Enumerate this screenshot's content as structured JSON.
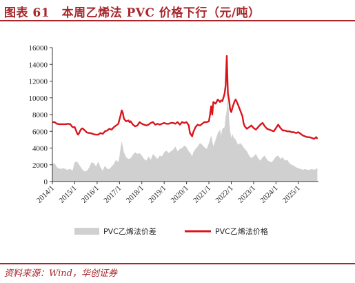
{
  "header": {
    "title": "图表 61　本周乙烯法 PVC 价格下行（元/吨）"
  },
  "footer": {
    "source": "资料来源：Wind，华创证券"
  },
  "chart_data": {
    "type": "line",
    "ylim": [
      0,
      16000
    ],
    "yticks": [
      0,
      2000,
      4000,
      6000,
      8000,
      10000,
      12000,
      14000,
      16000
    ],
    "ytick_labels": [
      "0",
      "2000",
      "4000",
      "6000",
      "8000",
      "10000",
      "12000",
      "14000",
      "16000"
    ],
    "xlim": [
      2014.0,
      2025.9
    ],
    "xticks": [
      2014,
      2015,
      2016,
      2017,
      2018,
      2019,
      2020,
      2021,
      2022,
      2023,
      2024,
      2025
    ],
    "xtick_labels": [
      "2014/1",
      "2015/1",
      "2016/1",
      "2017/1",
      "2018/1",
      "2019/1",
      "2020/1",
      "2021/1",
      "2022/1",
      "2023/1",
      "2024/1",
      "2025/1"
    ],
    "grid": false,
    "legend_position": "bottom",
    "series": [
      {
        "name": "PVC乙烯法价差",
        "kind": "area",
        "color": "#d0d0d0",
        "x": [
          2014.0,
          2014.1,
          2014.2,
          2014.35,
          2014.5,
          2014.65,
          2014.8,
          2014.9,
          2015.0,
          2015.1,
          2015.2,
          2015.35,
          2015.45,
          2015.55,
          2015.65,
          2015.75,
          2015.85,
          2015.95,
          2016.05,
          2016.15,
          2016.25,
          2016.35,
          2016.45,
          2016.55,
          2016.65,
          2016.75,
          2016.85,
          2016.95,
          2017.0,
          2017.05,
          2017.1,
          2017.15,
          2017.2,
          2017.3,
          2017.4,
          2017.5,
          2017.6,
          2017.7,
          2017.8,
          2017.9,
          2018.0,
          2018.1,
          2018.2,
          2018.3,
          2018.4,
          2018.5,
          2018.6,
          2018.7,
          2018.8,
          2018.9,
          2019.0,
          2019.1,
          2019.2,
          2019.3,
          2019.4,
          2019.5,
          2019.6,
          2019.7,
          2019.8,
          2019.9,
          2020.0,
          2020.1,
          2020.2,
          2020.25,
          2020.3,
          2020.4,
          2020.5,
          2020.6,
          2020.7,
          2020.8,
          2020.9,
          2021.0,
          2021.1,
          2021.2,
          2021.3,
          2021.4,
          2021.5,
          2021.55,
          2021.6,
          2021.7,
          2021.75,
          2021.8,
          2021.85,
          2021.9,
          2021.95,
          2022.0,
          2022.05,
          2022.1,
          2022.2,
          2022.3,
          2022.4,
          2022.5,
          2022.6,
          2022.7,
          2022.8,
          2022.9,
          2023.0,
          2023.1,
          2023.2,
          2023.3,
          2023.4,
          2023.5,
          2023.6,
          2023.7,
          2023.8,
          2023.9,
          2024.0,
          2024.1,
          2024.2,
          2024.3,
          2024.4,
          2024.5,
          2024.6,
          2024.7,
          2024.8,
          2024.9,
          2025.0,
          2025.1,
          2025.2,
          2025.3,
          2025.4,
          2025.5,
          2025.6,
          2025.7,
          2025.8,
          2025.85
        ],
        "values": [
          2100,
          2200,
          1700,
          1500,
          1600,
          1400,
          1500,
          1300,
          2300,
          2400,
          2000,
          1400,
          1200,
          1300,
          1700,
          2300,
          2200,
          1800,
          2400,
          1700,
          1300,
          1900,
          1500,
          1500,
          1800,
          2100,
          2600,
          2300,
          3000,
          4000,
          4800,
          4200,
          3500,
          2900,
          2700,
          2800,
          3200,
          3500,
          3300,
          3400,
          3100,
          2700,
          2500,
          3000,
          2600,
          3300,
          3000,
          2700,
          3100,
          3000,
          3500,
          3700,
          3400,
          3600,
          3800,
          4200,
          3600,
          3900,
          4000,
          4300,
          4100,
          3600,
          3300,
          3000,
          3500,
          3900,
          4200,
          4600,
          4400,
          4100,
          3900,
          4600,
          5500,
          4200,
          5000,
          5800,
          6200,
          5500,
          6300,
          6500,
          7800,
          8500,
          10800,
          7500,
          6000,
          5200,
          5700,
          5300,
          5000,
          4400,
          4600,
          4300,
          3900,
          3600,
          3100,
          2800,
          3000,
          3300,
          2800,
          2500,
          2900,
          3100,
          2600,
          2400,
          2300,
          2600,
          3000,
          3100,
          2700,
          2900,
          2500,
          2600,
          2200,
          2000,
          1900,
          1700,
          1600,
          1500,
          1400,
          1500,
          1400,
          1400,
          1500,
          1400,
          1500,
          1600
        ]
      },
      {
        "name": "PVC乙烯法价格",
        "kind": "line",
        "color": "#d9151b",
        "x": [
          2014.0,
          2014.1,
          2014.2,
          2014.3,
          2014.4,
          2014.5,
          2014.6,
          2014.7,
          2014.8,
          2014.9,
          2015.0,
          2015.1,
          2015.15,
          2015.2,
          2015.25,
          2015.3,
          2015.35,
          2015.45,
          2015.55,
          2015.65,
          2015.75,
          2015.85,
          2015.95,
          2016.05,
          2016.15,
          2016.25,
          2016.35,
          2016.45,
          2016.55,
          2016.65,
          2016.75,
          2016.85,
          2016.95,
          2017.0,
          2017.05,
          2017.1,
          2017.15,
          2017.2,
          2017.3,
          2017.4,
          2017.45,
          2017.5,
          2017.6,
          2017.7,
          2017.8,
          2017.9,
          2018.0,
          2018.1,
          2018.2,
          2018.3,
          2018.4,
          2018.5,
          2018.6,
          2018.7,
          2018.8,
          2018.9,
          2019.0,
          2019.1,
          2019.2,
          2019.3,
          2019.4,
          2019.5,
          2019.6,
          2019.7,
          2019.8,
          2019.9,
          2020.0,
          2020.05,
          2020.1,
          2020.15,
          2020.2,
          2020.25,
          2020.3,
          2020.4,
          2020.5,
          2020.6,
          2020.7,
          2020.8,
          2020.9,
          2021.0,
          2021.05,
          2021.1,
          2021.15,
          2021.2,
          2021.3,
          2021.4,
          2021.5,
          2021.55,
          2021.6,
          2021.65,
          2021.7,
          2021.75,
          2021.8,
          2021.82,
          2021.85,
          2021.9,
          2021.95,
          2022.0,
          2022.05,
          2022.1,
          2022.15,
          2022.2,
          2022.3,
          2022.4,
          2022.5,
          2022.55,
          2022.6,
          2022.7,
          2022.8,
          2022.9,
          2023.0,
          2023.1,
          2023.2,
          2023.3,
          2023.4,
          2023.5,
          2023.6,
          2023.7,
          2023.8,
          2023.9,
          2024.0,
          2024.1,
          2024.2,
          2024.3,
          2024.4,
          2024.5,
          2024.6,
          2024.7,
          2024.8,
          2024.9,
          2025.0,
          2025.1,
          2025.2,
          2025.3,
          2025.4,
          2025.5,
          2025.6,
          2025.7,
          2025.8,
          2025.85
        ],
        "values": [
          7100,
          7100,
          6900,
          6850,
          6850,
          6850,
          6850,
          6900,
          6850,
          6500,
          6500,
          5800,
          5600,
          5800,
          6100,
          6300,
          6350,
          6100,
          5850,
          5800,
          5750,
          5650,
          5600,
          5600,
          5800,
          5700,
          6000,
          6100,
          6300,
          6200,
          6500,
          6700,
          6900,
          7400,
          7900,
          8500,
          8200,
          7500,
          7200,
          7300,
          7100,
          7200,
          6800,
          6600,
          6700,
          7100,
          6900,
          6800,
          6700,
          6800,
          7000,
          7100,
          6800,
          6900,
          6800,
          6900,
          7000,
          6900,
          6900,
          7000,
          7000,
          6900,
          7100,
          6800,
          7100,
          7000,
          7100,
          6900,
          6700,
          5800,
          5600,
          5400,
          5900,
          6500,
          6800,
          6700,
          6900,
          7100,
          7100,
          7200,
          8000,
          9000,
          8000,
          9500,
          9300,
          9800,
          9500,
          9700,
          9600,
          10000,
          10500,
          11500,
          15000,
          13000,
          10500,
          9800,
          8600,
          8300,
          8800,
          9200,
          9600,
          9800,
          9200,
          8500,
          7800,
          7000,
          6600,
          6300,
          6500,
          6700,
          6400,
          6200,
          6500,
          6800,
          7000,
          6600,
          6300,
          6200,
          6100,
          6000,
          6400,
          6800,
          6400,
          6100,
          6100,
          6000,
          6000,
          5900,
          5900,
          5800,
          5900,
          5700,
          5500,
          5400,
          5300,
          5300,
          5200,
          5100,
          5300,
          5100
        ]
      }
    ]
  }
}
